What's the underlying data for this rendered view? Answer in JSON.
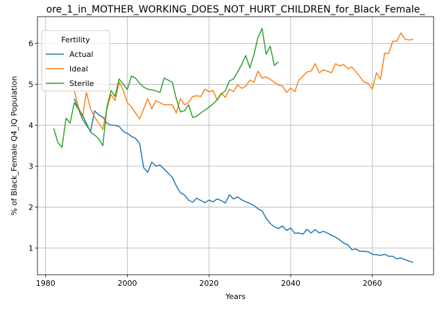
{
  "chart_data": {
    "type": "line",
    "title": "ore_1_in_MOTHER_WORKING_DOES_NOT_HURT_CHILDREN_for_Black_Female_",
    "xlabel": "Years",
    "ylabel": "% of Black_Female Q4_IQ Population",
    "xlim": [
      1978,
      2075
    ],
    "ylim": [
      0.35,
      6.65
    ],
    "xticks": [
      1980,
      2000,
      2020,
      2040,
      2060
    ],
    "yticks": [
      1,
      2,
      3,
      4,
      5,
      6
    ],
    "grid": true,
    "legend": {
      "title": "Fertility",
      "placement": "upper-left"
    },
    "series": [
      {
        "name": "Actual",
        "color": "#1f77b4",
        "x": [
          1987,
          1988,
          1989,
          1990,
          1991,
          1992,
          1993,
          1994,
          1995,
          1996,
          1997,
          1998,
          1999,
          2000,
          2001,
          2002,
          2003,
          2004,
          2005,
          2006,
          2007,
          2008,
          2009,
          2010,
          2011,
          2012,
          2013,
          2014,
          2015,
          2016,
          2017,
          2018,
          2019,
          2020,
          2021,
          2022,
          2023,
          2024,
          2025,
          2026,
          2027,
          2028,
          2029,
          2030,
          2031,
          2032,
          2033,
          2034,
          2035,
          2036,
          2037,
          2038,
          2039,
          2040,
          2041,
          2042,
          2043,
          2044,
          2045,
          2046,
          2047,
          2048,
          2049,
          2050,
          2051,
          2052,
          2053,
          2054,
          2055,
          2056,
          2057,
          2058,
          2059,
          2060,
          2061,
          2062,
          2063,
          2064,
          2065,
          2066,
          2067,
          2068,
          2069,
          2070
        ],
        "y": [
          4.65,
          4.4,
          4.15,
          4.0,
          3.85,
          4.35,
          4.25,
          4.2,
          4.05,
          4.0,
          4.0,
          3.97,
          3.85,
          3.8,
          3.73,
          3.68,
          3.56,
          2.96,
          2.85,
          3.1,
          3.0,
          3.03,
          2.93,
          2.83,
          2.73,
          2.52,
          2.35,
          2.3,
          2.17,
          2.12,
          2.22,
          2.16,
          2.11,
          2.17,
          2.13,
          2.2,
          2.16,
          2.1,
          2.3,
          2.2,
          2.25,
          2.18,
          2.13,
          2.09,
          2.04,
          1.96,
          1.91,
          1.73,
          1.6,
          1.52,
          1.48,
          1.54,
          1.43,
          1.49,
          1.36,
          1.37,
          1.34,
          1.46,
          1.37,
          1.45,
          1.37,
          1.41,
          1.37,
          1.31,
          1.27,
          1.2,
          1.12,
          1.08,
          0.96,
          0.98,
          0.92,
          0.92,
          0.91,
          0.85,
          0.84,
          0.82,
          0.85,
          0.8,
          0.8,
          0.74,
          0.76,
          0.72,
          0.68,
          0.65
        ]
      },
      {
        "name": "Ideal",
        "color": "#ff7f0e",
        "x": [
          1987,
          1988,
          1989,
          1990,
          1991,
          1992,
          1993,
          1994,
          1995,
          1996,
          1997,
          1998,
          1999,
          2000,
          2001,
          2002,
          2003,
          2004,
          2005,
          2006,
          2007,
          2008,
          2009,
          2010,
          2011,
          2012,
          2013,
          2014,
          2015,
          2016,
          2017,
          2018,
          2019,
          2020,
          2021,
          2022,
          2023,
          2024,
          2025,
          2026,
          2027,
          2028,
          2029,
          2030,
          2031,
          2032,
          2033,
          2034,
          2035,
          2036,
          2037,
          2038,
          2039,
          2040,
          2041,
          2042,
          2043,
          2044,
          2045,
          2046,
          2047,
          2048,
          2049,
          2050,
          2051,
          2052,
          2053,
          2054,
          2055,
          2056,
          2057,
          2058,
          2059,
          2060,
          2061,
          2062,
          2063,
          2064,
          2065,
          2066,
          2067,
          2068,
          2069,
          2070
        ],
        "y": [
          4.85,
          4.45,
          4.2,
          4.8,
          4.4,
          4.2,
          4.05,
          3.9,
          4.4,
          4.75,
          4.6,
          5.05,
          4.85,
          4.55,
          4.45,
          4.3,
          4.15,
          4.4,
          4.65,
          4.4,
          4.6,
          4.55,
          4.5,
          4.5,
          4.5,
          4.3,
          4.65,
          4.5,
          4.55,
          4.7,
          4.72,
          4.7,
          4.88,
          4.82,
          4.85,
          4.62,
          4.78,
          4.68,
          4.88,
          4.82,
          4.98,
          4.9,
          4.95,
          5.1,
          5.05,
          5.32,
          5.15,
          5.18,
          5.12,
          5.05,
          4.98,
          4.96,
          4.8,
          4.9,
          4.82,
          5.1,
          5.2,
          5.3,
          5.32,
          5.5,
          5.28,
          5.35,
          5.32,
          5.28,
          5.5,
          5.45,
          5.48,
          5.38,
          5.42,
          5.3,
          5.18,
          5.05,
          5.02,
          4.88,
          5.28,
          5.12,
          5.76,
          5.75,
          6.05,
          6.05,
          6.25,
          6.1,
          6.08,
          6.1
        ]
      },
      {
        "name": "Sterile",
        "color": "#2ca02c",
        "x": [
          1982,
          1983,
          1984,
          1985,
          1986,
          1987,
          1988,
          1989,
          1990,
          1991,
          1992,
          1993,
          1994,
          1995,
          1996,
          1997,
          1998,
          1999,
          2000,
          2001,
          2002,
          2003,
          2004,
          2005,
          2006,
          2007,
          2008,
          2009,
          2010,
          2011,
          2012,
          2013,
          2014,
          2015,
          2016,
          2017,
          2018,
          2019,
          2020,
          2021,
          2022,
          2023,
          2024,
          2025,
          2026,
          2027,
          2028,
          2029,
          2030,
          2031,
          2032,
          2033,
          2034,
          2035,
          2036,
          2037
        ],
        "y": [
          3.92,
          3.58,
          3.46,
          4.17,
          4.05,
          4.55,
          4.4,
          4.25,
          4.05,
          3.83,
          3.76,
          3.67,
          3.5,
          4.44,
          4.85,
          4.7,
          5.13,
          5.0,
          4.87,
          5.2,
          5.15,
          5.02,
          4.93,
          4.88,
          4.86,
          4.84,
          4.8,
          5.15,
          5.1,
          5.05,
          4.65,
          4.33,
          4.35,
          4.5,
          4.19,
          4.22,
          4.3,
          4.37,
          4.44,
          4.52,
          4.62,
          4.76,
          4.84,
          5.08,
          5.13,
          5.3,
          5.48,
          5.7,
          5.4,
          5.72,
          6.15,
          6.36,
          5.73,
          5.93,
          5.46,
          5.55
        ]
      }
    ]
  }
}
